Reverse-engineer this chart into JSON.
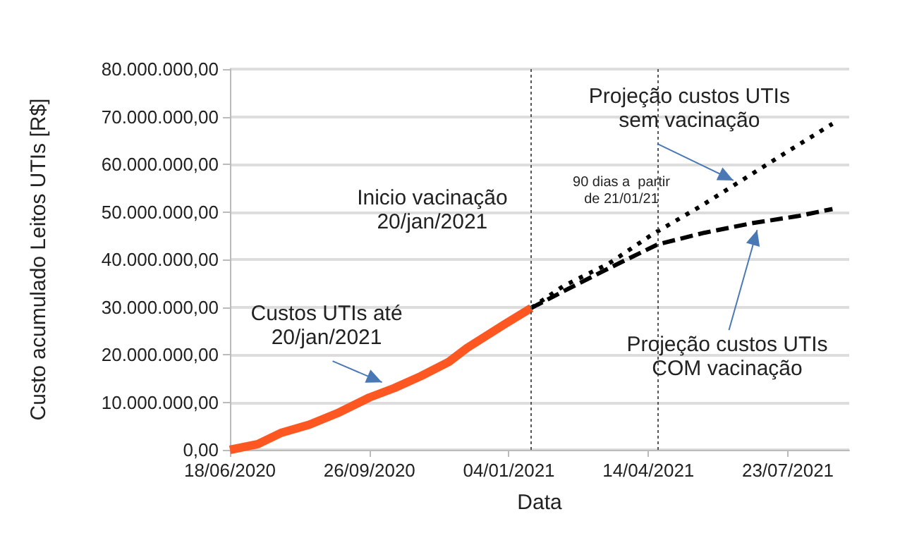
{
  "chart_data": {
    "type": "line",
    "xlabel": "Data",
    "ylabel": "Custo acumulado Leitos UTIs [R$]",
    "xlim": [
      "2020-06-18",
      "2021-09-05"
    ],
    "xticks": [
      {
        "value": "2020-06-18",
        "label": "18/06/2020"
      },
      {
        "value": "2020-09-26",
        "label": "26/09/2020"
      },
      {
        "value": "2021-01-04",
        "label": "04/01/2021"
      },
      {
        "value": "2021-04-14",
        "label": "14/04/2021"
      },
      {
        "value": "2021-07-23",
        "label": "23/07/2021"
      }
    ],
    "ylim": [
      0,
      80000000
    ],
    "yticks": [
      {
        "value": 0,
        "label": "0,00"
      },
      {
        "value": 10000000,
        "label": "10.000.000,00"
      },
      {
        "value": 20000000,
        "label": "20.000.000,00"
      },
      {
        "value": 30000000,
        "label": "30.000.000,00"
      },
      {
        "value": 40000000,
        "label": "40.000.000,00"
      },
      {
        "value": 50000000,
        "label": "50.000.000,00"
      },
      {
        "value": 60000000,
        "label": "60.000.000,00"
      },
      {
        "value": 70000000,
        "label": "70.000.000,00"
      },
      {
        "value": 80000000,
        "label": "80.000.000,00"
      }
    ],
    "grid": "y",
    "marker": "none",
    "series": [
      {
        "color": "#ff5722",
        "line_style": "solid",
        "x": [
          "2020-06-18",
          "2020-07-08",
          "2020-07-25",
          "2020-08-14",
          "2020-09-03",
          "2020-09-26",
          "2020-10-14",
          "2020-11-02",
          "2020-11-22",
          "2020-12-05",
          "2021-01-01",
          "2021-01-20"
        ],
        "values": [
          0,
          1200000,
          3600000,
          5300000,
          7700000,
          11000000,
          13000000,
          15500000,
          18500000,
          21400000,
          26400000,
          29800000
        ]
      },
      {
        "color": "#000000",
        "line_style": "dashed",
        "x": [
          "2021-01-20",
          "2021-02-12",
          "2021-03-17",
          "2021-04-21",
          "2021-05-24",
          "2021-06-27",
          "2021-07-30",
          "2021-08-24"
        ],
        "values": [
          29800000,
          33300000,
          38200000,
          43200000,
          45600000,
          47600000,
          49100000,
          50600000
        ]
      },
      {
        "color": "#000000",
        "line_style": "dotted",
        "x": [
          "2021-01-20",
          "2021-02-12",
          "2021-03-17",
          "2021-04-17",
          "2021-05-21",
          "2021-06-22",
          "2021-07-24",
          "2021-08-24"
        ],
        "values": [
          29800000,
          34400000,
          39200000,
          45300000,
          51100000,
          57000000,
          62900000,
          68500000
        ]
      }
    ],
    "ref_lines": [
      {
        "axis": "x",
        "value": "2021-01-20",
        "label": "Inicio vacinação\n20/jan/2021",
        "color": "#555555",
        "line_style": "dotted"
      },
      {
        "axis": "x",
        "value": "2021-04-21",
        "label": "90 dias a  partir\nde 21/01/21",
        "color": "#555555",
        "line_style": "dotted"
      }
    ],
    "annotations": [
      {
        "text": "Custos UTIs até\n20/jan/2021",
        "x": "2020-10-05",
        "y": 14200000
      },
      {
        "text": "Projeção custos UTIs\nsem vacinação",
        "x": "2021-06-14",
        "y": 56600000
      },
      {
        "text": "Projeção custos UTIs\nCOM vacinação",
        "x": "2021-07-01",
        "y": 46200000
      }
    ]
  }
}
